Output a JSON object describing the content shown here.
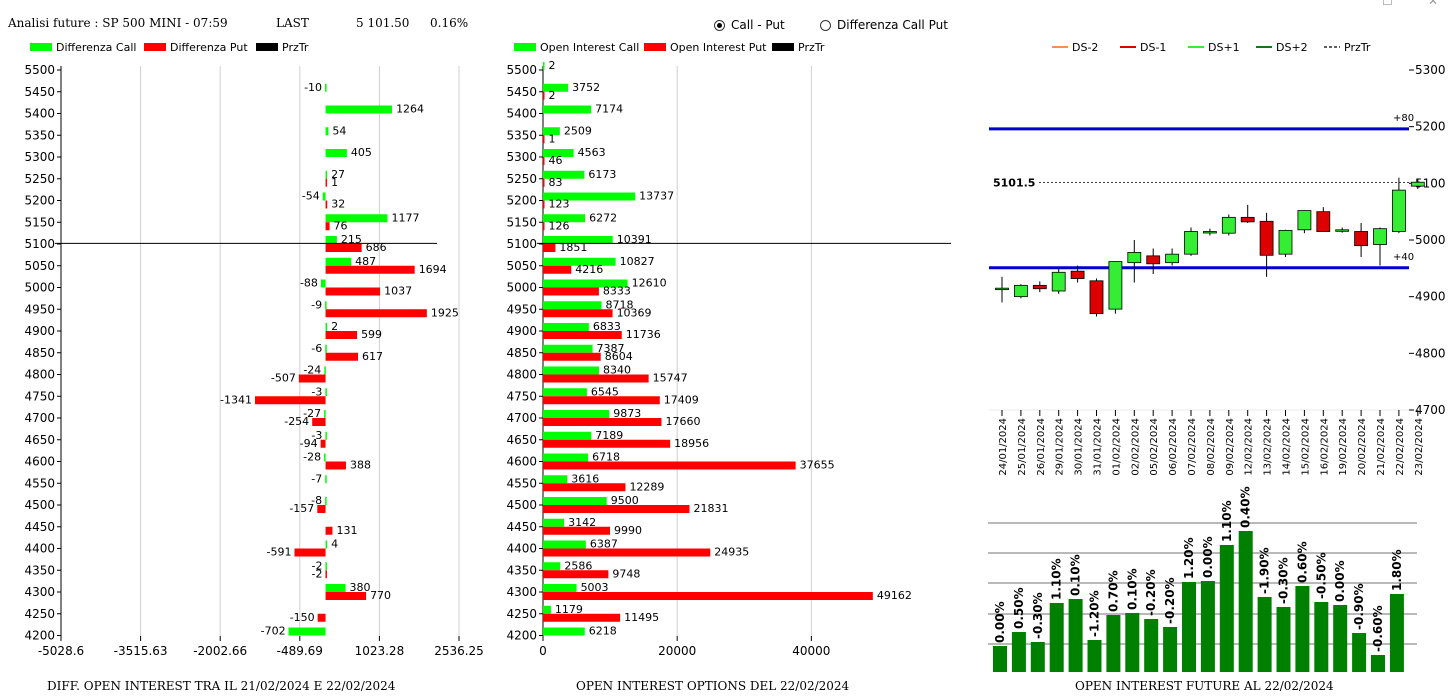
{
  "header": {
    "title": "Analisi future : SP 500 MINI - 07:59",
    "last_label": "LAST",
    "last_value": "5 101.50",
    "change_pct": "0.16%"
  },
  "radio": {
    "option1": "Call - Put",
    "option2": "Differenza Call Put",
    "selected": "Call - Put"
  },
  "colors": {
    "call": "#00ff00",
    "put": "#ff0000",
    "price": "#000000",
    "ds_m2": "#ff8c5a",
    "ds_m1": "#dd0000",
    "ds_p1": "#33ee33",
    "ds_p2": "#117711",
    "bar": "#008000",
    "level": "#0000cc"
  },
  "footer": {
    "left": "DIFF. OPEN INTEREST TRA IL 21/02/2024 E 22/02/2024",
    "middle": "OPEN INTEREST OPTIONS DEL 22/02/2024",
    "right": "OPEN INTEREST FUTURE AL 22/02/2024"
  },
  "chart_data": [
    {
      "type": "bar",
      "orientation": "horizontal",
      "legend": [
        "Differenza Call",
        "Differenza Put",
        "PrzTr"
      ],
      "strikes": [
        5500,
        5450,
        5400,
        5350,
        5300,
        5250,
        5200,
        5150,
        5100,
        5050,
        5000,
        4950,
        4900,
        4850,
        4800,
        4750,
        4700,
        4650,
        4600,
        4550,
        4500,
        4450,
        4400,
        4350,
        4300,
        4250,
        4200
      ],
      "series": [
        {
          "name": "Differenza Call",
          "values": [
            null,
            -10,
            1264,
            54,
            405,
            27,
            -54,
            1177,
            215,
            487,
            -88,
            -9,
            2,
            -6,
            -24,
            -3,
            -27,
            -3,
            -28,
            -7,
            -8,
            null,
            4,
            -2,
            380,
            null,
            -702
          ]
        },
        {
          "name": "Differenza Put",
          "values": [
            null,
            null,
            null,
            null,
            null,
            1,
            32,
            76,
            686,
            1694,
            1037,
            1925,
            599,
            617,
            -507,
            -1341,
            -254,
            -94,
            388,
            null,
            -157,
            131,
            -591,
            -2,
            770,
            -150,
            null
          ]
        }
      ],
      "price_level": 5101.5,
      "xticks": [
        "-5028.6",
        "-3515.63",
        "-2002.66",
        "-489.69",
        "1023.28",
        "2536.25"
      ],
      "xlim": [
        -5028.6,
        2536.25
      ]
    },
    {
      "type": "bar",
      "orientation": "horizontal",
      "legend": [
        "Open Interest Call",
        "Open Interest Put",
        "PrzTr"
      ],
      "strikes": [
        5500,
        5450,
        5400,
        5350,
        5300,
        5250,
        5200,
        5150,
        5100,
        5050,
        5000,
        4950,
        4900,
        4850,
        4800,
        4750,
        4700,
        4650,
        4600,
        4550,
        4500,
        4450,
        4400,
        4350,
        4300,
        4250,
        4200
      ],
      "series": [
        {
          "name": "Open Interest Call",
          "values": [
            2,
            3752,
            7174,
            2509,
            4563,
            6173,
            13737,
            6272,
            10391,
            10827,
            12610,
            8718,
            6833,
            7387,
            8340,
            6545,
            9873,
            7189,
            6718,
            3616,
            9500,
            3142,
            6387,
            2586,
            5003,
            1179,
            6218
          ]
        },
        {
          "name": "Open Interest Put",
          "values": [
            null,
            2,
            null,
            1,
            46,
            83,
            123,
            126,
            1851,
            4216,
            8333,
            10369,
            11736,
            8604,
            15747,
            17409,
            17660,
            18956,
            37655,
            12289,
            21831,
            9990,
            24935,
            9748,
            49162,
            11495,
            null
          ]
        }
      ],
      "price_level": 5101.5,
      "xticks": [
        "0",
        "20000",
        "40000"
      ],
      "xlim": [
        0,
        55000
      ]
    },
    {
      "type": "candlestick",
      "legend": [
        "DS-2",
        "DS-1",
        "DS+1",
        "DS+2",
        "PrzTr"
      ],
      "dates": [
        "24/01/2024",
        "25/01/2024",
        "26/01/2024",
        "29/01/2024",
        "30/01/2024",
        "31/01/2024",
        "01/02/2024",
        "02/02/2024",
        "05/02/2024",
        "06/02/2024",
        "07/02/2024",
        "08/02/2024",
        "09/02/2024",
        "12/02/2024",
        "13/02/2024",
        "14/02/2024",
        "15/02/2024",
        "16/02/2024",
        "19/02/2024",
        "20/02/2024",
        "21/02/2024",
        "22/02/2024",
        "23/02/2024"
      ],
      "ohlc": [
        [
          4915,
          4935,
          4890,
          4915
        ],
        [
          4900,
          4922,
          4897,
          4920
        ],
        [
          4920,
          4927,
          4908,
          4914
        ],
        [
          4910,
          4950,
          4905,
          4943
        ],
        [
          4945,
          4955,
          4925,
          4932
        ],
        [
          4928,
          4932,
          4865,
          4870
        ],
        [
          4878,
          4962,
          4870,
          4962
        ],
        [
          4960,
          5000,
          4925,
          4978
        ],
        [
          4972,
          4985,
          4940,
          4958
        ],
        [
          4960,
          4985,
          4955,
          4975
        ],
        [
          4975,
          5022,
          4972,
          5015
        ],
        [
          5015,
          5020,
          5008,
          5015
        ],
        [
          5012,
          5045,
          5008,
          5040
        ],
        [
          5040,
          5062,
          5030,
          5032
        ],
        [
          5033,
          5048,
          4935,
          4973
        ],
        [
          4975,
          5018,
          4970,
          5017
        ],
        [
          5018,
          5052,
          5012,
          5052
        ],
        [
          5050,
          5058,
          5015,
          5015
        ],
        [
          5018,
          5022,
          5013,
          5018
        ],
        [
          5015,
          5030,
          4970,
          4990
        ],
        [
          4992,
          5022,
          4955,
          5020
        ],
        [
          5015,
          5110,
          5012,
          5088
        ],
        [
          5095,
          5108,
          5090,
          5102
        ]
      ],
      "price_level": 5101.5,
      "price_label": "5101.5",
      "levels": [
        {
          "value": 5196,
          "label": "+80"
        },
        {
          "value": 4951,
          "label": "+40"
        }
      ],
      "yticks": [
        "5300",
        "5200",
        "5100",
        "5000",
        "4900",
        "4800",
        "4700"
      ],
      "ylim": [
        4700,
        5300
      ]
    },
    {
      "type": "bar",
      "labels": [
        "0.00%",
        "0.50%",
        "-0.30%",
        "1.10%",
        "0.10%",
        "-1.20%",
        "0.70%",
        "0.10%",
        "-0.20%",
        "-0.20%",
        "1.20%",
        "0.00%",
        "1.10%",
        "0.40%",
        "-1.90%",
        "-0.30%",
        "0.60%",
        "-0.50%",
        "0.00%",
        "-0.90%",
        "-0.60%",
        "1.80%"
      ],
      "values": [
        26,
        40,
        30,
        69,
        73,
        32,
        57,
        59,
        53,
        45,
        90,
        91,
        127,
        141,
        75,
        65,
        86,
        70,
        67,
        39,
        17,
        78
      ]
    }
  ]
}
